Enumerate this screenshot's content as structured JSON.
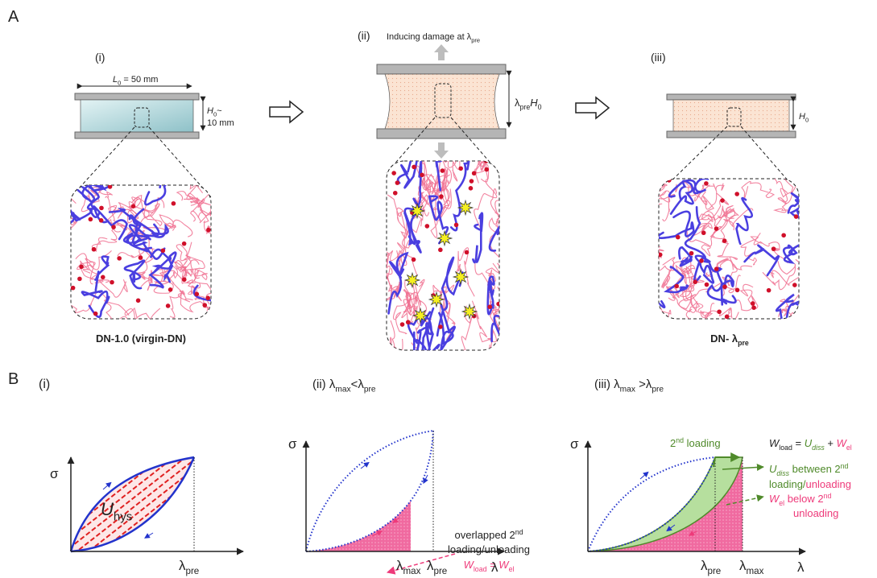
{
  "panel_a": {
    "label": "A",
    "step_i": {
      "label": "(i)",
      "length": [
        "L",
        "0",
        " = 50 mm"
      ],
      "height": [
        "H",
        "0",
        "~",
        "10 mm"
      ],
      "caption": "DN-1.0 (virgin-DN)"
    },
    "step_ii": {
      "label": "(ii)",
      "title": [
        "Inducing damage at λ",
        "pre"
      ],
      "height": [
        "λ",
        "pre",
        "H",
        "0"
      ]
    },
    "step_iii": {
      "label": "(iii)",
      "height": [
        "H",
        "0"
      ],
      "caption": [
        "DN- λ",
        "pre"
      ]
    }
  },
  "panel_b": {
    "label": "B",
    "plot_i": {
      "label": "(i)",
      "y_axis": "σ",
      "area": [
        "U",
        "hys"
      ],
      "x_tick": [
        "λ",
        "pre"
      ]
    },
    "plot_ii": {
      "label": "(ii)",
      "title": [
        "λ",
        "max",
        "<λ",
        "pre"
      ],
      "y_axis": "σ",
      "note": [
        "overlapped 2",
        "nd",
        "loading/unloading"
      ],
      "equation": [
        "W",
        "load",
        " = W",
        "el"
      ],
      "x_ticks": [
        [
          "λ",
          "max"
        ],
        [
          "λ",
          "pre"
        ]
      ],
      "x_axis": "λ"
    },
    "plot_iii": {
      "label": "(iii)",
      "title": [
        "λ",
        "max",
        " >λ",
        "pre"
      ],
      "y_axis": "σ",
      "loading_label": [
        "2",
        "nd",
        " loading"
      ],
      "equation": [
        "W",
        "load",
        " = ",
        "U",
        "diss",
        " + ",
        "W",
        "el"
      ],
      "dissipated": [
        "U",
        "diss",
        " between 2",
        "nd",
        "loading/",
        "unloading"
      ],
      "elastic": [
        "W",
        "el",
        " below 2",
        "nd",
        "unloading"
      ],
      "x_ticks": [
        [
          "λ",
          "pre"
        ],
        [
          "λ",
          "max"
        ]
      ],
      "x_axis": "λ"
    }
  }
}
